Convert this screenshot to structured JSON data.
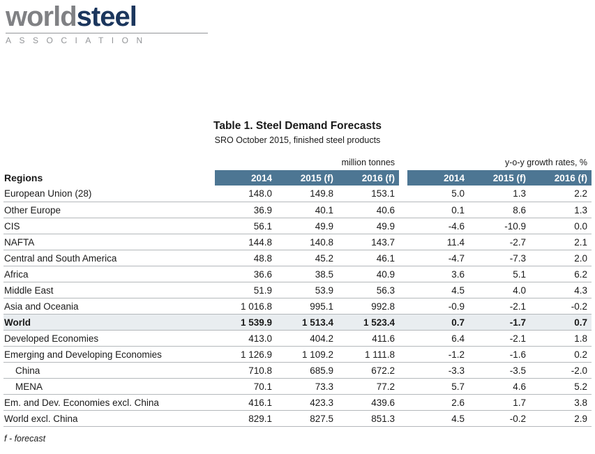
{
  "logo": {
    "world": "world",
    "steel": "steel",
    "association": "ASSOCIATION"
  },
  "title": "Table 1. Steel Demand Forecasts",
  "subtitle": "SRO October 2015, finished steel products",
  "table": {
    "group1_label": "million tonnes",
    "group2_label": "y-o-y growth rates, %",
    "regions_label": "Regions",
    "col_headers": [
      "2014",
      "2015 (f)",
      "2016 (f)"
    ],
    "rows": [
      {
        "name": "European Union (28)",
        "mt": [
          "148.0",
          "149.8",
          "153.1"
        ],
        "growth": [
          "5.0",
          "1.3",
          "2.2"
        ],
        "bold": false,
        "indent": false
      },
      {
        "name": "Other Europe",
        "mt": [
          "36.9",
          "40.1",
          "40.6"
        ],
        "growth": [
          "0.1",
          "8.6",
          "1.3"
        ],
        "bold": false,
        "indent": false
      },
      {
        "name": "CIS",
        "mt": [
          "56.1",
          "49.9",
          "49.9"
        ],
        "growth": [
          "-4.6",
          "-10.9",
          "0.0"
        ],
        "bold": false,
        "indent": false
      },
      {
        "name": "NAFTA",
        "mt": [
          "144.8",
          "140.8",
          "143.7"
        ],
        "growth": [
          "11.4",
          "-2.7",
          "2.1"
        ],
        "bold": false,
        "indent": false
      },
      {
        "name": "Central and South America",
        "mt": [
          "48.8",
          "45.2",
          "46.1"
        ],
        "growth": [
          "-4.7",
          "-7.3",
          "2.0"
        ],
        "bold": false,
        "indent": false
      },
      {
        "name": "Africa",
        "mt": [
          "36.6",
          "38.5",
          "40.9"
        ],
        "growth": [
          "3.6",
          "5.1",
          "6.2"
        ],
        "bold": false,
        "indent": false
      },
      {
        "name": "Middle East",
        "mt": [
          "51.9",
          "53.9",
          "56.3"
        ],
        "growth": [
          "4.5",
          "4.0",
          "4.3"
        ],
        "bold": false,
        "indent": false
      },
      {
        "name": "Asia and Oceania",
        "mt": [
          "1 016.8",
          "995.1",
          "992.8"
        ],
        "growth": [
          "-0.9",
          "-2.1",
          "-0.2"
        ],
        "bold": false,
        "indent": false
      },
      {
        "name": "World",
        "mt": [
          "1 539.9",
          "1 513.4",
          "1 523.4"
        ],
        "growth": [
          "0.7",
          "-1.7",
          "0.7"
        ],
        "bold": true,
        "indent": false
      },
      {
        "name": "Developed Economies",
        "mt": [
          "413.0",
          "404.2",
          "411.6"
        ],
        "growth": [
          "6.4",
          "-2.1",
          "1.8"
        ],
        "bold": false,
        "indent": false
      },
      {
        "name": "Emerging and Developing Economies",
        "mt": [
          "1 126.9",
          "1 109.2",
          "1 111.8"
        ],
        "growth": [
          "-1.2",
          "-1.6",
          "0.2"
        ],
        "bold": false,
        "indent": false
      },
      {
        "name": "China",
        "mt": [
          "710.8",
          "685.9",
          "672.2"
        ],
        "growth": [
          "-3.3",
          "-3.5",
          "-2.0"
        ],
        "bold": false,
        "indent": true
      },
      {
        "name": "MENA",
        "mt": [
          "70.1",
          "73.3",
          "77.2"
        ],
        "growth": [
          "5.7",
          "4.6",
          "5.2"
        ],
        "bold": false,
        "indent": true
      },
      {
        "name": "Em. and Dev. Economies excl. China",
        "mt": [
          "416.1",
          "423.3",
          "439.6"
        ],
        "growth": [
          "2.6",
          "1.7",
          "3.8"
        ],
        "bold": false,
        "indent": false
      },
      {
        "name": "World excl. China",
        "mt": [
          "829.1",
          "827.5",
          "851.3"
        ],
        "growth": [
          "4.5",
          "-0.2",
          "2.9"
        ],
        "bold": false,
        "indent": false
      }
    ]
  },
  "footnote": "f - forecast",
  "colors": {
    "header_bg": "#4d7693",
    "highlight_row_bg": "#e9edf0",
    "line_color": "#b4b8bb",
    "logo_world": "#808184",
    "logo_steel": "#1b365d",
    "logo_gray": "#939598"
  }
}
